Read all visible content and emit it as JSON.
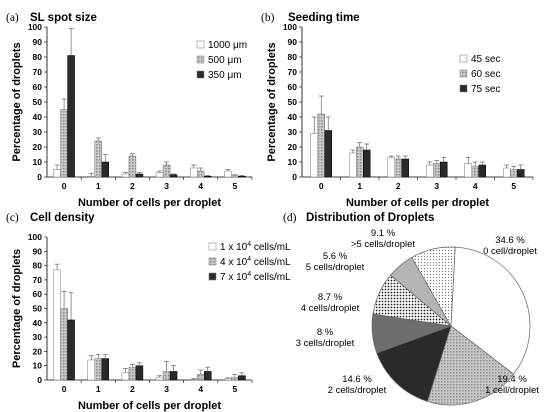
{
  "colors": {
    "s1": "#ffffff",
    "s2": "#a8a8a8",
    "s3": "#2a2a2a",
    "stroke": "#555555"
  },
  "chart_data": [
    {
      "type": "bar",
      "panel": "(a)",
      "title": "SL spot size",
      "xlabel": "Number of cells per droplet",
      "ylabel": "Percentage of droplets",
      "categories": [
        "0",
        "1",
        "2",
        "3",
        "4",
        "5"
      ],
      "ylim": [
        0,
        100
      ],
      "yticks": [
        "0",
        "10",
        "20",
        "30",
        "40",
        "50",
        "60",
        "70",
        "80",
        "90",
        "100"
      ],
      "grid": false,
      "legend_position": "right",
      "series": [
        {
          "name": "1000 μm",
          "legend_label": "1000 μm",
          "pattern": "white",
          "values": [
            5,
            0.5,
            2,
            3,
            6,
            4
          ],
          "errors": [
            3,
            2,
            1,
            1,
            2,
            1
          ]
        },
        {
          "name": "500 μm",
          "legend_label": "500 μm",
          "pattern": "lightgray",
          "values": [
            45,
            24,
            14,
            8,
            4,
            1
          ],
          "errors": [
            7,
            2,
            1.5,
            2,
            2,
            0.5
          ]
        },
        {
          "name": "350 μm",
          "legend_label": "350 μm",
          "pattern": "black",
          "values": [
            81,
            10,
            2,
            1.5,
            0.5,
            0.5
          ],
          "errors": [
            18,
            5,
            1,
            0.5,
            0.5,
            0.5
          ]
        }
      ]
    },
    {
      "type": "bar",
      "panel": "(b)",
      "title": "Seeding time",
      "xlabel": "Number of cells per droplet",
      "ylabel": "Percentage of droplets",
      "categories": [
        "0",
        "1",
        "2",
        "3",
        "4",
        "5"
      ],
      "ylim": [
        0,
        100
      ],
      "yticks": [
        "0",
        "10",
        "20",
        "30",
        "40",
        "50",
        "60",
        "70",
        "80",
        "90",
        "100"
      ],
      "grid": false,
      "legend_position": "right",
      "series": [
        {
          "name": "45 sec",
          "legend_label": "45 sec",
          "pattern": "white",
          "values": [
            29,
            16,
            13,
            8,
            9,
            6
          ],
          "errors": [
            11,
            2,
            1,
            2,
            4,
            2
          ]
        },
        {
          "name": "60 sec",
          "legend_label": "60 sec",
          "pattern": "lightgray",
          "values": [
            42,
            20,
            12,
            9,
            7,
            5
          ],
          "errors": [
            12,
            3,
            2,
            2,
            3,
            2
          ]
        },
        {
          "name": "75 sec",
          "legend_label": "75 sec",
          "pattern": "black",
          "values": [
            31,
            18,
            12,
            10,
            8,
            5
          ],
          "errors": [
            9,
            4,
            2,
            3,
            2,
            3
          ]
        }
      ]
    },
    {
      "type": "bar",
      "panel": "(c)",
      "title": "Cell density",
      "xlabel": "Number of cells per droplet",
      "ylabel": "Percentage of droplets",
      "categories": [
        "0",
        "1",
        "2",
        "3",
        "4",
        "5"
      ],
      "ylim": [
        0,
        100
      ],
      "yticks": [
        "0",
        "10",
        "20",
        "30",
        "40",
        "50",
        "60",
        "70",
        "80",
        "90",
        "100"
      ],
      "grid": false,
      "legend_position": "right",
      "series": [
        {
          "name": "1 x 10^4 cells/mL",
          "legend_base": "1 x 10",
          "legend_sup": "4",
          "legend_unit": " cells/mL",
          "pattern": "white",
          "values": [
            77,
            14,
            5,
            2,
            0.5,
            1
          ],
          "errors": [
            4,
            3,
            3,
            1,
            0.5,
            0.5
          ]
        },
        {
          "name": "4 x 10^4 cells/mL",
          "legend_base": "4 x 10",
          "legend_sup": "4",
          "legend_unit": " cells/mL",
          "pattern": "lightgray",
          "values": [
            50,
            15,
            9,
            6,
            4,
            2
          ],
          "errors": [
            12,
            3,
            2,
            7,
            3,
            2
          ]
        },
        {
          "name": "7 x 10^4 cells/mL",
          "legend_base": "7 x 10",
          "legend_sup": "4",
          "legend_unit": " cells/mL",
          "pattern": "black",
          "values": [
            42,
            15,
            10,
            6,
            6,
            3
          ],
          "errors": [
            19,
            3,
            2,
            4,
            3,
            2
          ]
        }
      ]
    },
    {
      "type": "pie",
      "panel": "(d)",
      "title": "Distribution of Droplets",
      "slices": [
        {
          "pct_label": "34.6 %",
          "label": "0 cell/droplet",
          "value": 34.6,
          "pattern": "white"
        },
        {
          "pct_label": "19.4 %",
          "label": "1 cell/droplet",
          "value": 19.4,
          "pattern": "lightgray"
        },
        {
          "pct_label": "14.6 %",
          "label": "2 cells/droplet",
          "value": 14.6,
          "pattern": "black"
        },
        {
          "pct_label": "8 %",
          "label": "3 cells/droplet",
          "value": 8,
          "pattern": "darkgray"
        },
        {
          "pct_label": "8.7 %",
          "label": "4 cells/droplet",
          "value": 8.7,
          "pattern": "dots"
        },
        {
          "pct_label": "5.6 %",
          "label": "5 cells/droplet",
          "value": 5.6,
          "pattern": "silver"
        },
        {
          "pct_label": "9.1 %",
          "label": ">5 cells/droplet",
          "value": 9.1,
          "pattern": "dots-light"
        }
      ]
    }
  ]
}
